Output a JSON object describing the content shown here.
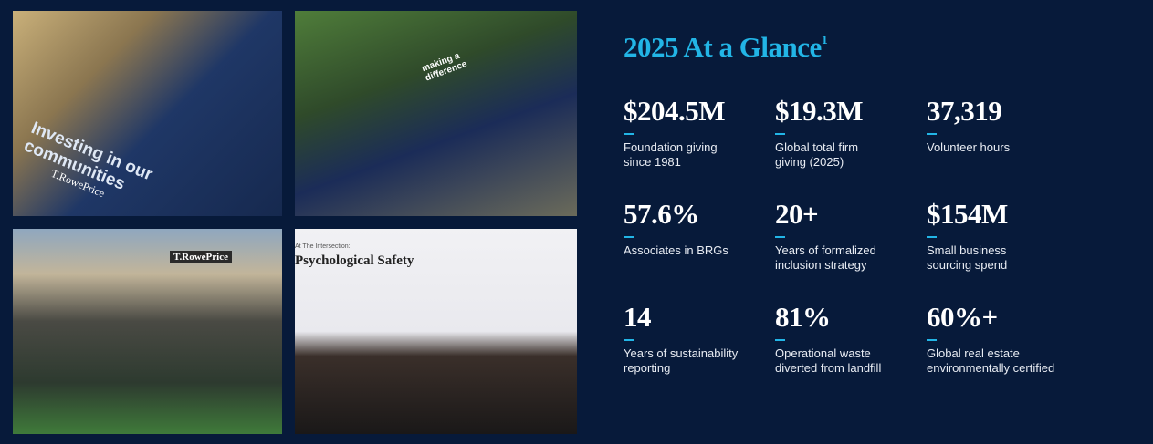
{
  "header": {
    "title": "2025 At a Glance",
    "footnote": "1"
  },
  "photos": [
    {
      "caption": [
        "Investing in our",
        "communities"
      ],
      "logo": "T.RowePrice"
    },
    {
      "caption": [
        "making a",
        "difference"
      ]
    },
    {
      "caption": [
        "T.RowePrice"
      ]
    },
    {
      "caption": [
        "At The Intersection:",
        "Psychological Safety"
      ]
    }
  ],
  "stats": [
    {
      "value": "$204.5M",
      "lines": [
        "Foundation giving",
        "since 1981"
      ]
    },
    {
      "value": "$19.3M",
      "lines": [
        "Global total firm",
        "giving (2025)"
      ]
    },
    {
      "value": "37,319",
      "lines": [
        "Volunteer hours"
      ]
    },
    {
      "value": "57.6%",
      "lines": [
        "Associates in BRGs"
      ]
    },
    {
      "value": "20+",
      "lines": [
        "Years of formalized",
        "inclusion strategy"
      ]
    },
    {
      "value": "$154M",
      "lines": [
        "Small business",
        "sourcing spend"
      ]
    },
    {
      "value": "14",
      "lines": [
        "Years of sustainability",
        "reporting"
      ]
    },
    {
      "value": "81%",
      "lines": [
        "Operational waste",
        "diverted from landfill"
      ]
    },
    {
      "value": "60%+",
      "lines": [
        "Global real estate",
        "environmentally certified"
      ]
    }
  ]
}
